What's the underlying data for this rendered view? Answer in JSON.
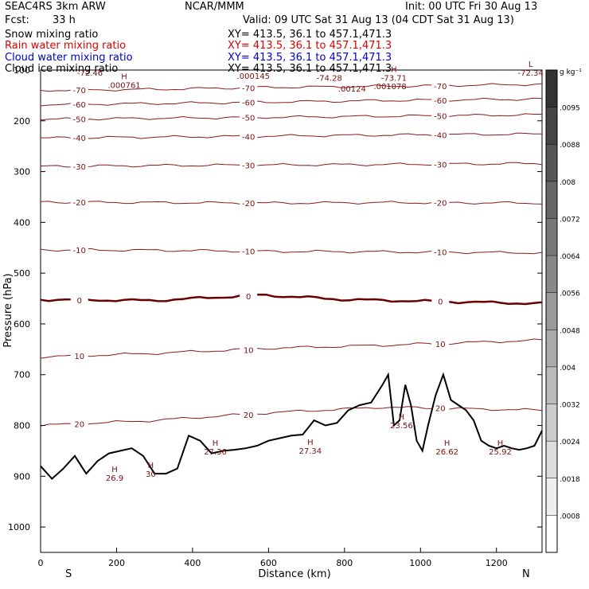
{
  "header": {
    "model": "SEAC4RS  3km ARW",
    "org": "NCAR/MMM",
    "init": "Init: 00 UTC Fri 30 Aug 13",
    "fcst_label": "Fcst:",
    "fcst_value": "33 h",
    "valid": "Valid: 09 UTC Sat 31 Aug 13 (04 CDT Sat 31 Aug 13)",
    "fields": [
      {
        "name": "Snow mixing ratio",
        "xy": "XY= 413.5, 36.1 to 457.1,471.3",
        "color": "#000000"
      },
      {
        "name": "Rain water mixing ratio",
        "xy": "XY= 413.5, 36.1 to 457.1,471.3",
        "color": "#dd0000"
      },
      {
        "name": "Cloud water mixing ratio",
        "xy": "XY= 413.5, 36.1 to 457.1,471.3",
        "color": "#0000cc"
      },
      {
        "name": "Cloud ice mixing ratio",
        "xy": "XY= 413.5, 36.1 to 457.1,471.3",
        "color": "#000000"
      }
    ]
  },
  "chart_data": {
    "type": "line",
    "xlabel": "Distance (km)",
    "ylabel": "Pressure (hPa)",
    "xlim": [
      0,
      1320
    ],
    "ylim": [
      1050,
      100
    ],
    "xticks": [
      0,
      200,
      400,
      600,
      800,
      1000,
      1200
    ],
    "yticks": [
      100,
      200,
      300,
      400,
      500,
      600,
      700,
      800,
      900,
      1000
    ],
    "y_tick_labels": [
      "100",
      "200",
      "300",
      "400",
      "500",
      "600",
      "700",
      "800",
      "900",
      "1000"
    ],
    "x_end_labels": {
      "left": "S",
      "right": "N"
    },
    "temperature_contours": [
      {
        "label": "-70",
        "points": [
          [
            0,
            140
          ],
          [
            300,
            138
          ],
          [
            600,
            134
          ],
          [
            900,
            132
          ],
          [
            1320,
            128
          ]
        ]
      },
      {
        "label": "-60",
        "points": [
          [
            0,
            168
          ],
          [
            300,
            166
          ],
          [
            600,
            163
          ],
          [
            900,
            160
          ],
          [
            1320,
            157
          ]
        ]
      },
      {
        "label": "-50",
        "points": [
          [
            0,
            197
          ],
          [
            300,
            195
          ],
          [
            600,
            193
          ],
          [
            900,
            191
          ],
          [
            1320,
            188
          ]
        ]
      },
      {
        "label": "-40",
        "points": [
          [
            0,
            234
          ],
          [
            300,
            232
          ],
          [
            600,
            230
          ],
          [
            900,
            228
          ],
          [
            1320,
            226
          ]
        ]
      },
      {
        "label": "-30",
        "points": [
          [
            0,
            290
          ],
          [
            300,
            288
          ],
          [
            600,
            287
          ],
          [
            900,
            286
          ],
          [
            1320,
            284
          ]
        ]
      },
      {
        "label": "-20",
        "points": [
          [
            0,
            360
          ],
          [
            300,
            361
          ],
          [
            600,
            362
          ],
          [
            900,
            361
          ],
          [
            1320,
            362
          ]
        ]
      },
      {
        "label": "-10",
        "points": [
          [
            0,
            454
          ],
          [
            300,
            455
          ],
          [
            600,
            457
          ],
          [
            900,
            458
          ],
          [
            1320,
            460
          ]
        ]
      },
      {
        "label": "0",
        "points": [
          [
            0,
            552
          ],
          [
            300,
            554
          ],
          [
            580,
            543
          ],
          [
            800,
            552
          ],
          [
            1320,
            560
          ]
        ]
      },
      {
        "label": "10",
        "points": [
          [
            0,
            665
          ],
          [
            300,
            658
          ],
          [
            600,
            648
          ],
          [
            900,
            642
          ],
          [
            1320,
            632
          ]
        ]
      },
      {
        "label": "20",
        "points": [
          [
            0,
            800
          ],
          [
            300,
            790
          ],
          [
            600,
            775
          ],
          [
            900,
            764
          ],
          [
            1320,
            770
          ]
        ]
      }
    ],
    "contour_labels": [
      "-70",
      "-60",
      "-50",
      "-40",
      "-30",
      "-20",
      "-10",
      "0",
      "10",
      "20"
    ],
    "extrema": [
      {
        "mark": "H",
        "value": ".000761",
        "x": 220,
        "y": 118
      },
      {
        "mark": "",
        "value": ".000145",
        "x": 560,
        "y": 100
      },
      {
        "mark": "",
        "value": "-74.28",
        "x": 760,
        "y": 104
      },
      {
        "mark": "",
        "value": ".00124",
        "x": 820,
        "y": 125
      },
      {
        "mark": "H",
        "value": "-73.71",
        "x": 930,
        "y": 104
      },
      {
        "mark": "",
        "value": ".001078",
        "x": 920,
        "y": 120
      },
      {
        "mark": "L",
        "value": "-72.34",
        "x": 1290,
        "y": 94
      },
      {
        "mark": "",
        "value": "-72.46",
        "x": 130,
        "y": 94
      },
      {
        "mark": "H",
        "value": "26.9",
        "x": 195,
        "y": 892
      },
      {
        "mark": "H",
        "value": "30",
        "x": 290,
        "y": 884
      },
      {
        "mark": "H",
        "value": "27.36",
        "x": 460,
        "y": 840
      },
      {
        "mark": "H",
        "value": "27.34",
        "x": 710,
        "y": 838
      },
      {
        "mark": "H",
        "value": "23.56",
        "x": 950,
        "y": 788
      },
      {
        "mark": "H",
        "value": "26.62",
        "x": 1070,
        "y": 840
      },
      {
        "mark": "H",
        "value": "25.92",
        "x": 1210,
        "y": 840
      }
    ],
    "terrain_pressure": {
      "x": [
        0,
        30,
        60,
        90,
        120,
        150,
        180,
        210,
        240,
        270,
        300,
        330,
        360,
        390,
        420,
        450,
        480,
        510,
        540,
        570,
        600,
        630,
        660,
        690,
        720,
        750,
        780,
        810,
        840,
        870,
        900,
        915,
        930,
        945,
        960,
        975,
        990,
        1005,
        1020,
        1040,
        1060,
        1080,
        1100,
        1120,
        1140,
        1160,
        1180,
        1200,
        1220,
        1240,
        1260,
        1280,
        1300,
        1320
      ],
      "p": [
        880,
        905,
        885,
        860,
        895,
        870,
        855,
        850,
        845,
        860,
        895,
        895,
        885,
        820,
        830,
        855,
        850,
        848,
        845,
        840,
        830,
        825,
        820,
        818,
        790,
        800,
        795,
        770,
        760,
        755,
        720,
        700,
        800,
        790,
        720,
        760,
        830,
        850,
        800,
        740,
        700,
        750,
        760,
        770,
        790,
        830,
        840,
        845,
        840,
        845,
        848,
        845,
        840,
        810
      ]
    }
  },
  "colorbar": {
    "units": "g kg⁻¹",
    "labels": [
      ".0095",
      ".0088",
      ".008",
      ".0072",
      ".0064",
      ".0056",
      ".0048",
      ".004",
      ".0032",
      ".0024",
      ".0018",
      ".0008"
    ],
    "top_color": "#333333",
    "bottom_color": "#ffffff"
  },
  "colors": {
    "contour": "#8b1a1a",
    "zero_contour": "#6a0000",
    "terrain": "#000000",
    "label": "#7a1010"
  }
}
